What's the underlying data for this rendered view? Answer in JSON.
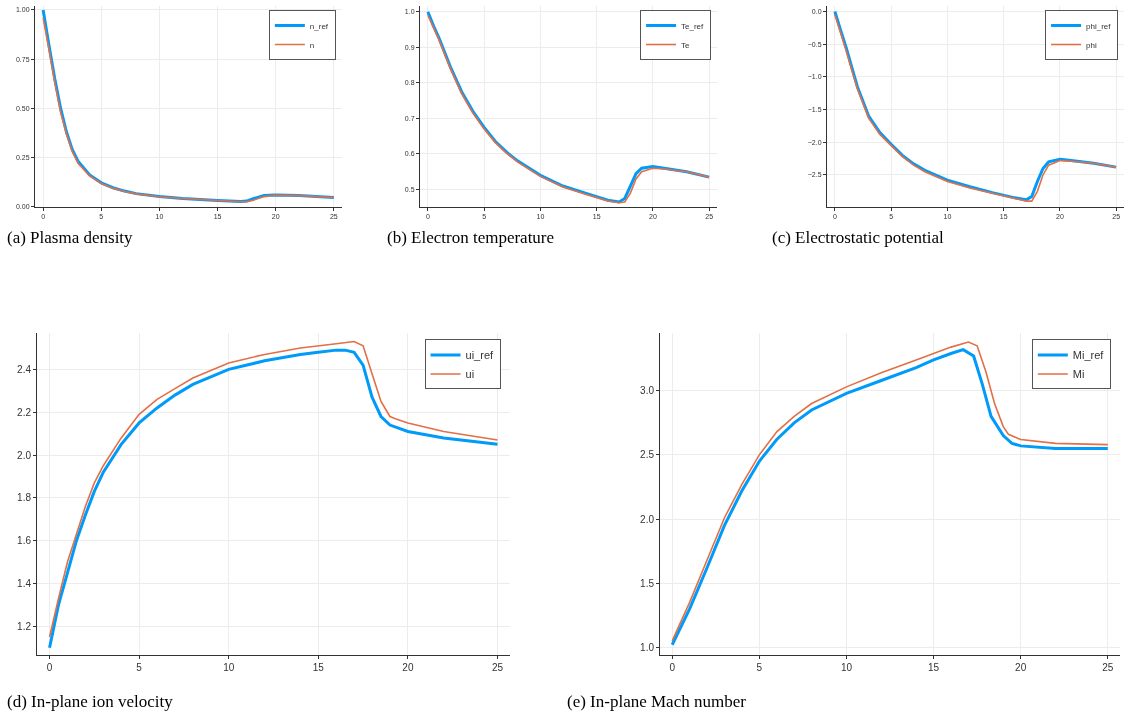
{
  "chart_data": [
    {
      "type": "line",
      "annotations": [
        "(a) Plasma density"
      ],
      "xlim": [
        -0.7,
        25.7
      ],
      "xticks": [
        0,
        5,
        10,
        15,
        20,
        25
      ],
      "ylim": [
        -0.003,
        1.02
      ],
      "yticks": [
        {
          "value": 0,
          "label": "0.00"
        },
        {
          "value": 0.25,
          "label": "0.25"
        },
        {
          "value": 0.5,
          "label": "0.50"
        },
        {
          "value": 0.75,
          "label": "0.75"
        },
        {
          "value": 1,
          "label": "1.00"
        }
      ],
      "grid": true,
      "legend": "top right",
      "series": [
        {
          "name": "n_ref",
          "color": "#009af9",
          "x": [
            0,
            0.5,
            1,
            1.5,
            2,
            2.5,
            3,
            4,
            5,
            6,
            7,
            8,
            10,
            12,
            15,
            17,
            17.5,
            18,
            19,
            20,
            22,
            25
          ],
          "values": [
            1.0,
            0.82,
            0.65,
            0.5,
            0.38,
            0.29,
            0.23,
            0.16,
            0.12,
            0.095,
            0.078,
            0.065,
            0.05,
            0.04,
            0.03,
            0.025,
            0.027,
            0.038,
            0.055,
            0.058,
            0.055,
            0.045
          ]
        },
        {
          "name": "n",
          "color": "#e26f46",
          "x": [
            0,
            0.5,
            1,
            1.5,
            2,
            2.5,
            3,
            4,
            5,
            6,
            7,
            8,
            10,
            12,
            15,
            17,
            17.5,
            18,
            19,
            20,
            22,
            25
          ],
          "values": [
            0.96,
            0.8,
            0.63,
            0.48,
            0.37,
            0.28,
            0.22,
            0.155,
            0.117,
            0.093,
            0.076,
            0.064,
            0.049,
            0.04,
            0.03,
            0.024,
            0.024,
            0.03,
            0.05,
            0.057,
            0.055,
            0.045
          ]
        }
      ]
    },
    {
      "type": "line",
      "annotations": [
        "(b) Electron temperature"
      ],
      "xlim": [
        -0.7,
        25.7
      ],
      "xticks": [
        0,
        5,
        10,
        15,
        20,
        25
      ],
      "ylim": [
        0.451,
        1.016
      ],
      "yticks": [
        {
          "value": 0.5,
          "label": "0.5"
        },
        {
          "value": 0.6,
          "label": "0.6"
        },
        {
          "value": 0.7,
          "label": "0.7"
        },
        {
          "value": 0.8,
          "label": "0.8"
        },
        {
          "value": 0.9,
          "label": "0.9"
        },
        {
          "value": 1,
          "label": "1.0"
        }
      ],
      "grid": true,
      "legend": "top right",
      "series": [
        {
          "name": "Te_ref",
          "color": "#009af9",
          "x": [
            0,
            0.5,
            1,
            1.5,
            2,
            3,
            4,
            5,
            6,
            7,
            8,
            10,
            12,
            14,
            16,
            17,
            17.5,
            18,
            18.5,
            19,
            20,
            21,
            23,
            25
          ],
          "values": [
            1.0,
            0.96,
            0.925,
            0.885,
            0.845,
            0.775,
            0.72,
            0.675,
            0.635,
            0.605,
            0.58,
            0.54,
            0.51,
            0.49,
            0.47,
            0.465,
            0.475,
            0.51,
            0.545,
            0.56,
            0.565,
            0.56,
            0.55,
            0.535
          ]
        },
        {
          "name": "Te",
          "color": "#e26f46",
          "x": [
            0,
            0.5,
            1,
            1.5,
            2,
            3,
            4,
            5,
            6,
            7,
            8,
            10,
            12,
            14,
            16,
            17,
            17.5,
            18,
            18.5,
            19,
            20,
            21,
            23,
            25
          ],
          "values": [
            0.99,
            0.955,
            0.92,
            0.88,
            0.84,
            0.77,
            0.715,
            0.67,
            0.632,
            0.602,
            0.577,
            0.537,
            0.507,
            0.487,
            0.468,
            0.463,
            0.465,
            0.49,
            0.53,
            0.55,
            0.56,
            0.558,
            0.55,
            0.535
          ]
        }
      ]
    },
    {
      "type": "line",
      "annotations": [
        "(c) Electrostatic potential"
      ],
      "xlim": [
        -0.7,
        25.7
      ],
      "xticks": [
        0,
        5,
        10,
        15,
        20,
        25
      ],
      "ylim": [
        -2.99,
        0.085
      ],
      "yticks": [
        {
          "value": -2.5,
          "label": "−2.5"
        },
        {
          "value": -2,
          "label": "−2.0"
        },
        {
          "value": -1.5,
          "label": "−1.5"
        },
        {
          "value": -1,
          "label": "−1.0"
        },
        {
          "value": -0.5,
          "label": "−0.5"
        },
        {
          "value": 0,
          "label": "0.0"
        }
      ],
      "grid": true,
      "legend": "top right",
      "series": [
        {
          "name": "phi_ref",
          "color": "#009af9",
          "x": [
            0,
            0.5,
            1,
            1.5,
            2,
            3,
            4,
            5,
            6,
            7,
            8,
            10,
            12,
            14,
            16,
            17,
            17.5,
            18,
            18.5,
            19,
            20,
            21,
            23,
            25
          ],
          "values": [
            0,
            -0.28,
            -0.55,
            -0.85,
            -1.15,
            -1.6,
            -1.85,
            -2.03,
            -2.2,
            -2.33,
            -2.43,
            -2.58,
            -2.68,
            -2.77,
            -2.85,
            -2.88,
            -2.83,
            -2.6,
            -2.4,
            -2.3,
            -2.26,
            -2.28,
            -2.32,
            -2.38
          ]
        },
        {
          "name": "phi",
          "color": "#e26f46",
          "x": [
            0,
            0.5,
            1,
            1.5,
            2,
            3,
            4,
            5,
            6,
            7,
            8,
            10,
            12,
            14,
            16,
            17,
            17.5,
            18,
            18.5,
            19,
            20,
            21,
            23,
            25
          ],
          "values": [
            -0.05,
            -0.32,
            -0.6,
            -0.9,
            -1.18,
            -1.63,
            -1.88,
            -2.05,
            -2.22,
            -2.35,
            -2.45,
            -2.6,
            -2.7,
            -2.78,
            -2.86,
            -2.9,
            -2.9,
            -2.75,
            -2.5,
            -2.35,
            -2.28,
            -2.29,
            -2.32,
            -2.38
          ]
        }
      ]
    },
    {
      "type": "line",
      "annotations": [
        "(d) In-plane ion velocity"
      ],
      "xlim": [
        -0.7,
        25.7
      ],
      "xticks": [
        0,
        5,
        10,
        15,
        20,
        25
      ],
      "ylim": [
        1.066,
        2.57
      ],
      "yticks": [
        1.2,
        1.4,
        1.6,
        1.8,
        {
          "value": 2,
          "label": "2.0"
        },
        2.2,
        2.4
      ],
      "grid": true,
      "legend": "top right",
      "series": [
        {
          "name": "ui_ref",
          "color": "#009af9",
          "x": [
            0,
            0.5,
            1,
            1.5,
            2,
            2.5,
            3,
            4,
            5,
            6,
            7,
            8,
            10,
            12,
            14,
            15,
            16,
            16.5,
            17,
            17.5,
            18,
            18.5,
            19,
            20,
            22,
            25
          ],
          "values": [
            1.1,
            1.3,
            1.45,
            1.6,
            1.72,
            1.83,
            1.92,
            2.05,
            2.15,
            2.22,
            2.28,
            2.33,
            2.4,
            2.44,
            2.47,
            2.48,
            2.49,
            2.49,
            2.48,
            2.42,
            2.27,
            2.18,
            2.14,
            2.11,
            2.08,
            2.05
          ]
        },
        {
          "name": "ui",
          "color": "#e26f46",
          "x": [
            0,
            0.5,
            1,
            1.5,
            2,
            2.5,
            3,
            4,
            5,
            6,
            7,
            8,
            10,
            12,
            14,
            16,
            17,
            17.5,
            18,
            18.5,
            19,
            19.3,
            20,
            22,
            25
          ],
          "values": [
            1.15,
            1.33,
            1.5,
            1.63,
            1.76,
            1.87,
            1.95,
            2.08,
            2.19,
            2.26,
            2.31,
            2.36,
            2.43,
            2.47,
            2.5,
            2.52,
            2.53,
            2.51,
            2.38,
            2.25,
            2.18,
            2.17,
            2.15,
            2.11,
            2.07
          ]
        }
      ]
    },
    {
      "type": "line",
      "annotations": [
        "(e) In-plane Mach number"
      ],
      "xlim": [
        -0.7,
        25.7
      ],
      "xticks": [
        0,
        5,
        10,
        15,
        20,
        25
      ],
      "ylim": [
        0.94,
        3.45
      ],
      "yticks": [
        {
          "value": 1,
          "label": "1.0"
        },
        1.5,
        {
          "value": 2,
          "label": "2.0"
        },
        2.5,
        {
          "value": 3,
          "label": "3.0"
        }
      ],
      "grid": true,
      "legend": "top right",
      "series": [
        {
          "name": "Mi_ref",
          "color": "#009af9",
          "x": [
            0,
            1,
            2,
            3,
            4,
            5,
            6,
            7,
            8,
            10,
            12,
            14,
            15,
            16,
            16.7,
            17.3,
            17.8,
            18.3,
            19,
            19.5,
            20,
            22,
            25
          ],
          "values": [
            1.02,
            1.3,
            1.62,
            1.95,
            2.22,
            2.45,
            2.62,
            2.75,
            2.85,
            2.98,
            3.08,
            3.18,
            3.24,
            3.29,
            3.32,
            3.27,
            3.05,
            2.8,
            2.65,
            2.59,
            2.57,
            2.55,
            2.55
          ]
        },
        {
          "name": "Mi",
          "color": "#e26f46",
          "x": [
            0,
            1,
            2,
            3,
            4,
            5,
            6,
            7,
            8,
            10,
            12,
            14,
            16,
            17,
            17.5,
            18,
            18.5,
            19,
            19.3,
            20,
            22,
            25
          ],
          "values": [
            1.05,
            1.35,
            1.68,
            2.01,
            2.27,
            2.5,
            2.68,
            2.8,
            2.9,
            3.03,
            3.14,
            3.24,
            3.34,
            3.38,
            3.35,
            3.15,
            2.9,
            2.72,
            2.66,
            2.62,
            2.59,
            2.58
          ]
        }
      ]
    }
  ]
}
